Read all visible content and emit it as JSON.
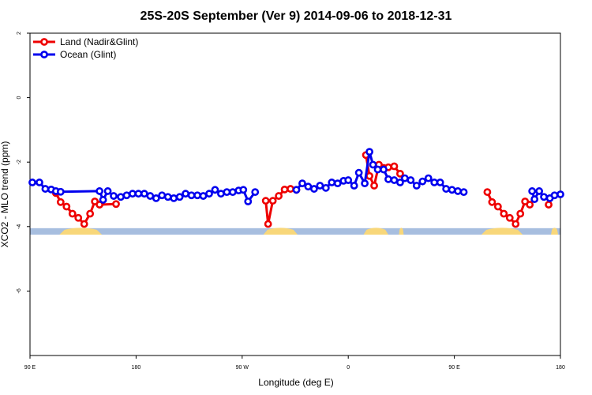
{
  "chart_data": {
    "type": "line",
    "title": "25S-20S September (Ver 9)   2014-09-06 to 2018-12-31",
    "xlabel": "Longitude (deg E)",
    "ylabel": "XCO2 - MLO trend (ppm)",
    "xlim": [
      90,
      540
    ],
    "ylim": [
      -8,
      2
    ],
    "x_ticks": [
      {
        "value": 90,
        "label": "90 E"
      },
      {
        "value": 180,
        "label": "180"
      },
      {
        "value": 270,
        "label": "90 W"
      },
      {
        "value": 360,
        "label": "0"
      },
      {
        "value": 450,
        "label": "90 E"
      },
      {
        "value": 540,
        "label": "180"
      }
    ],
    "y_ticks": [
      {
        "value": 2,
        "label": "2"
      },
      {
        "value": 0,
        "label": "0"
      },
      {
        "value": -2,
        "label": "-2"
      },
      {
        "value": -4,
        "label": "-4"
      },
      {
        "value": -6,
        "label": "-6"
      }
    ],
    "legend": {
      "position": "top-left"
    },
    "land_strip": {
      "y_top": -4.05,
      "y_bottom": -4.25,
      "ocean_color": "#a7bedf",
      "land_color": "#f8d77a",
      "land_ranges": [
        [
          115,
          151
        ],
        [
          288,
          317
        ],
        [
          373,
          394
        ],
        [
          403,
          407
        ],
        [
          473,
          508
        ],
        [
          532,
          538
        ]
      ]
    },
    "series": [
      {
        "name": "Land (Nadir&Glint)",
        "color": "#ee0000",
        "segments": [
          [
            [
              112,
              -2.96
            ],
            [
              116,
              -3.24
            ],
            [
              121,
              -3.38
            ],
            [
              126,
              -3.6
            ],
            [
              131,
              -3.73
            ],
            [
              136,
              -3.92
            ],
            [
              141,
              -3.6
            ],
            [
              145,
              -3.22
            ],
            [
              149,
              -3.32
            ],
            [
              163,
              -3.3
            ]
          ],
          [
            [
              290,
              -3.2
            ],
            [
              292,
              -3.92
            ],
            [
              296,
              -3.2
            ],
            [
              301,
              -3.05
            ],
            [
              306,
              -2.85
            ],
            [
              311,
              -2.83
            ],
            [
              316,
              -2.86
            ]
          ],
          [
            [
              375,
              -1.78
            ],
            [
              378,
              -2.43
            ],
            [
              382,
              -2.73
            ],
            [
              386,
              -2.08
            ],
            [
              390,
              -2.18
            ],
            [
              394,
              -2.16
            ],
            [
              399,
              -2.13
            ],
            [
              404,
              -2.36
            ]
          ],
          [
            [
              478,
              -2.93
            ],
            [
              482,
              -3.24
            ],
            [
              487,
              -3.38
            ],
            [
              492,
              -3.6
            ],
            [
              497,
              -3.73
            ],
            [
              502,
              -3.92
            ],
            [
              506,
              -3.6
            ],
            [
              510,
              -3.22
            ],
            [
              514,
              -3.32
            ]
          ],
          [
            [
              530,
              -3.32
            ]
          ]
        ]
      },
      {
        "name": "Ocean (Glint)",
        "color": "#0000ee",
        "segments": [
          [
            [
              92,
              -2.63
            ],
            [
              98,
              -2.63
            ],
            [
              103,
              -2.83
            ],
            [
              108,
              -2.85
            ],
            [
              112,
              -2.9
            ],
            [
              116,
              -2.92
            ],
            [
              149,
              -2.9
            ],
            [
              152,
              -3.17
            ],
            [
              156,
              -2.9
            ],
            [
              161,
              -3.05
            ],
            [
              167,
              -3.08
            ],
            [
              172,
              -3.03
            ],
            [
              177,
              -2.98
            ],
            [
              182,
              -2.98
            ],
            [
              187,
              -2.98
            ],
            [
              192,
              -3.05
            ],
            [
              197,
              -3.12
            ],
            [
              202,
              -3.03
            ],
            [
              207,
              -3.08
            ],
            [
              212,
              -3.12
            ],
            [
              217,
              -3.08
            ],
            [
              222,
              -2.98
            ],
            [
              227,
              -3.03
            ],
            [
              232,
              -3.03
            ],
            [
              237,
              -3.05
            ],
            [
              242,
              -2.98
            ],
            [
              247,
              -2.86
            ],
            [
              252,
              -2.98
            ],
            [
              257,
              -2.93
            ],
            [
              262,
              -2.93
            ],
            [
              267,
              -2.88
            ],
            [
              271,
              -2.86
            ],
            [
              275,
              -3.22
            ],
            [
              281,
              -2.93
            ]
          ],
          [
            [
              316,
              -2.86
            ],
            [
              321,
              -2.66
            ],
            [
              326,
              -2.76
            ],
            [
              331,
              -2.83
            ],
            [
              336,
              -2.73
            ],
            [
              341,
              -2.8
            ],
            [
              346,
              -2.63
            ],
            [
              351,
              -2.66
            ],
            [
              356,
              -2.58
            ],
            [
              360,
              -2.56
            ],
            [
              365,
              -2.73
            ],
            [
              369,
              -2.33
            ],
            [
              374,
              -2.66
            ],
            [
              378,
              -1.68
            ],
            [
              381,
              -2.08
            ],
            [
              385,
              -2.23
            ],
            [
              390,
              -2.23
            ],
            [
              394,
              -2.53
            ],
            [
              399,
              -2.56
            ],
            [
              404,
              -2.63
            ],
            [
              408,
              -2.5
            ],
            [
              413,
              -2.56
            ],
            [
              418,
              -2.73
            ],
            [
              423,
              -2.6
            ],
            [
              428,
              -2.5
            ],
            [
              433,
              -2.63
            ],
            [
              438,
              -2.63
            ],
            [
              443,
              -2.83
            ],
            [
              448,
              -2.86
            ],
            [
              453,
              -2.9
            ],
            [
              458,
              -2.93
            ]
          ],
          [
            [
              516,
              -2.9
            ],
            [
              518,
              -3.15
            ],
            [
              522,
              -2.9
            ],
            [
              526,
              -3.08
            ],
            [
              531,
              -3.12
            ],
            [
              535,
              -3.03
            ],
            [
              540,
              -3.0
            ]
          ]
        ]
      }
    ]
  }
}
